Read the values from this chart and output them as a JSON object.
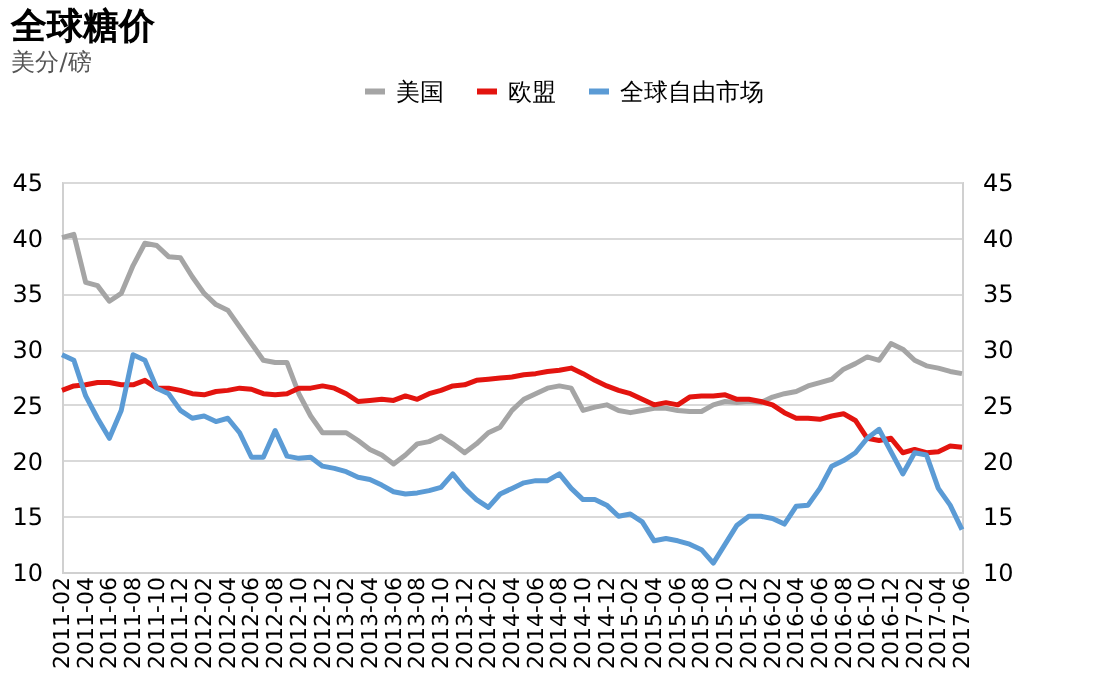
{
  "chart_data": {
    "type": "line",
    "title": "全球糖价",
    "subtitle": "美分/磅",
    "categories": [
      "2011-02",
      null,
      "2011-04",
      null,
      "2011-06",
      null,
      "2011-08",
      null,
      "2011-10",
      null,
      "2011-12",
      null,
      "2012-02",
      null,
      "2012-04",
      null,
      "2012-06",
      null,
      "2012-08",
      null,
      "2012-10",
      null,
      "2012-12",
      null,
      "2013-02",
      null,
      "2013-04",
      null,
      "2013-06",
      null,
      "2013-08",
      null,
      "2013-10",
      null,
      "2013-12",
      null,
      "2014-02",
      null,
      "2014-04",
      null,
      "2014-06",
      null,
      "2014-08",
      null,
      "2014-10",
      null,
      "2014-12",
      null,
      "2015-02",
      null,
      "2015-04",
      null,
      "2015-06",
      null,
      "2015-08",
      null,
      "2015-10",
      null,
      "2015-12",
      null,
      "2016-02",
      null,
      "2016-04",
      null,
      "2016-06",
      null,
      "2016-08",
      null,
      "2016-10",
      null,
      "2016-12",
      null,
      "2017-02",
      null,
      "2017-04",
      null,
      "2017-06"
    ],
    "series": [
      {
        "name": "美国",
        "color": "#a5a5a5",
        "values": [
          40,
          40.3,
          36,
          35.7,
          34.3,
          35,
          37.5,
          39.5,
          39.3,
          38.3,
          38.2,
          36.5,
          35,
          34,
          33.5,
          32,
          30.5,
          29,
          28.8,
          28.8,
          26,
          24,
          22.5,
          22.5,
          22.5,
          21.8,
          21,
          20.5,
          19.7,
          20.5,
          21.5,
          21.7,
          22.2,
          21.5,
          20.7,
          21.5,
          22.5,
          23,
          24.5,
          25.5,
          26,
          26.5,
          26.7,
          26.5,
          24.5,
          24.8,
          25,
          24.5,
          24.3,
          24.5,
          24.7,
          24.7,
          24.5,
          24.4,
          24.4,
          25,
          25.3,
          25.2,
          25.3,
          25.2,
          25.7,
          26,
          26.2,
          26.7,
          27,
          27.3,
          28.2,
          28.7,
          29.3,
          29,
          30.5,
          30,
          29,
          28.5,
          28.3,
          28,
          27.8
        ]
      },
      {
        "name": "欧盟",
        "color": "#e3140f",
        "values": [
          26.3,
          26.7,
          26.8,
          27,
          27,
          26.8,
          26.8,
          27.2,
          26.5,
          26.5,
          26.3,
          26,
          25.9,
          26.2,
          26.3,
          26.5,
          26.4,
          26,
          25.9,
          26,
          26.5,
          26.5,
          26.7,
          26.5,
          26,
          25.3,
          25.4,
          25.5,
          25.4,
          25.8,
          25.5,
          26,
          26.3,
          26.7,
          26.8,
          27.2,
          27.3,
          27.4,
          27.5,
          27.7,
          27.8,
          28,
          28.1,
          28.3,
          27.8,
          27.2,
          26.7,
          26.3,
          26,
          25.5,
          25,
          25.2,
          25,
          25.7,
          25.8,
          25.8,
          25.9,
          25.5,
          25.5,
          25.3,
          25,
          24.3,
          23.8,
          23.8,
          23.7,
          24,
          24.2,
          23.6,
          22,
          21.8,
          22,
          20.7,
          21,
          20.7,
          20.8,
          21.3,
          21.2
        ]
      },
      {
        "name": "全球自由市场",
        "color": "#5b9bd5",
        "values": [
          29.5,
          29,
          25.8,
          23.8,
          22,
          24.5,
          29.5,
          29,
          26.5,
          26,
          24.5,
          23.8,
          24,
          23.5,
          23.8,
          22.5,
          20.3,
          20.3,
          22.7,
          20.4,
          20.2,
          20.3,
          19.5,
          19.3,
          19,
          18.5,
          18.3,
          17.8,
          17.2,
          17,
          17.1,
          17.3,
          17.6,
          18.8,
          17.5,
          16.5,
          15.8,
          17,
          17.5,
          18,
          18.2,
          18.2,
          18.8,
          17.5,
          16.5,
          16.5,
          16,
          15,
          15.2,
          14.5,
          12.8,
          13,
          12.8,
          12.5,
          12,
          10.8,
          12.5,
          14.2,
          15,
          15,
          14.8,
          14.3,
          15.9,
          16,
          17.5,
          19.5,
          20,
          20.7,
          22,
          22.8,
          20.8,
          18.8,
          20.7,
          20.5,
          17.5,
          16,
          13.8
        ]
      }
    ],
    "ylim": [
      10,
      45
    ],
    "yticks": [
      10,
      15,
      20,
      25,
      30,
      35,
      40,
      45
    ],
    "y2lim": [
      10,
      45
    ],
    "y2ticks": [
      10,
      15,
      20,
      25,
      30,
      35,
      40,
      45
    ],
    "grid": "y",
    "legend": "top",
    "line_style": "solid",
    "marker": "none"
  }
}
